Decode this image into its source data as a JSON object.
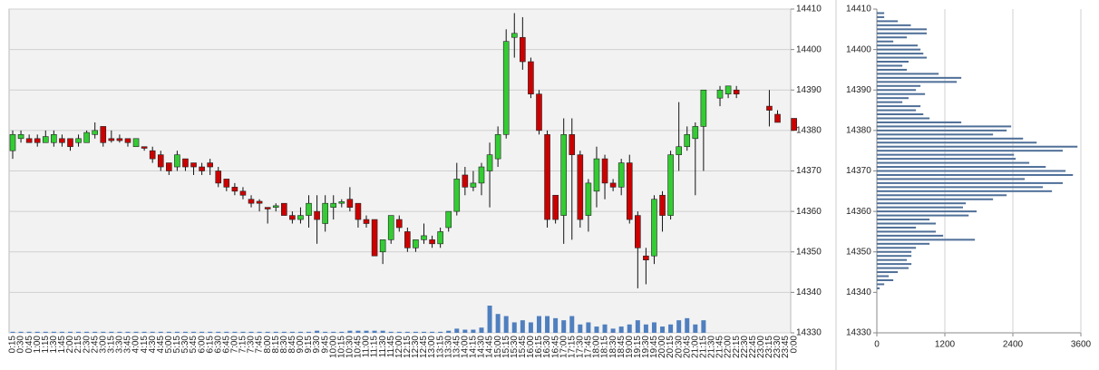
{
  "chart_data": [
    {
      "type": "candlestick",
      "categories": [
        "0:15",
        "0:30",
        "0:45",
        "1:00",
        "1:15",
        "1:30",
        "1:45",
        "2:00",
        "2:15",
        "2:30",
        "2:45",
        "3:00",
        "3:15",
        "3:30",
        "3:45",
        "4:00",
        "4:15",
        "4:30",
        "4:45",
        "5:00",
        "5:15",
        "5:30",
        "5:45",
        "6:00",
        "6:15",
        "6:30",
        "6:45",
        "7:00",
        "7:15",
        "7:30",
        "7:45",
        "8:00",
        "8:15",
        "8:30",
        "8:45",
        "9:00",
        "9:15",
        "9:30",
        "9:45",
        "10:00",
        "10:15",
        "10:30",
        "10:45",
        "11:00",
        "11:15",
        "11:30",
        "11:45",
        "12:00",
        "12:15",
        "12:30",
        "12:45",
        "13:00",
        "13:15",
        "13:30",
        "13:45",
        "14:00",
        "14:15",
        "14:30",
        "14:45",
        "15:00",
        "15:15",
        "15:30",
        "15:45",
        "16:00",
        "16:15",
        "16:30",
        "16:45",
        "17:00",
        "17:15",
        "17:30",
        "17:45",
        "18:00",
        "18:15",
        "18:30",
        "18:45",
        "19:00",
        "19:15",
        "19:30",
        "19:45",
        "20:00",
        "20:15",
        "20:30",
        "20:45",
        "21:00",
        "21:15",
        "21:30",
        "21:45",
        "22:00",
        "22:15",
        "22:30",
        "22:45",
        "23:00",
        "23:15",
        "23:30",
        "23:45",
        "0:00"
      ],
      "open": [
        14375,
        14378,
        14378,
        14378,
        14377,
        14377,
        14378,
        14378,
        14377,
        14377,
        14379,
        14381,
        14378,
        14378,
        14378,
        14376,
        14376,
        14375,
        14374,
        14372,
        14371,
        14373,
        14372,
        14371,
        14372,
        14370,
        14368,
        14366,
        14365,
        14363,
        14362.5,
        14361,
        14361,
        14362,
        14359,
        14358,
        14359,
        14360,
        14357,
        14361,
        14362,
        14363,
        14362,
        14358,
        14358,
        14350,
        14353,
        14358,
        14355,
        14351,
        14353,
        14353,
        14352,
        14356,
        14360,
        14369,
        14366,
        14367,
        14370,
        14373,
        14379,
        14403,
        14403,
        14397,
        14389,
        14379,
        14364,
        14359,
        14379,
        14374,
        14359,
        14365,
        14373,
        14367,
        14366,
        14372,
        14359,
        14349,
        14349,
        14364,
        14359,
        14374,
        14376,
        14378,
        14381,
        null,
        14388,
        14389,
        14390,
        null,
        null,
        null,
        14386,
        14384,
        null,
        14383
      ],
      "close": [
        14379,
        14379,
        14377,
        14377,
        14378.5,
        14379,
        14377,
        14376,
        14378,
        14379.5,
        14380,
        14377,
        14377.5,
        14377.5,
        14377,
        14378,
        14375.6,
        14373,
        14371,
        14370,
        14374,
        14371,
        14371,
        14370,
        14371,
        14367,
        14366,
        14365,
        14364,
        14362,
        14362,
        14360.6,
        14361.4,
        14359,
        14358,
        14359,
        14362,
        14358,
        14362,
        14362,
        14362.4,
        14361,
        14358,
        14357,
        14349,
        14353,
        14359,
        14356,
        14351,
        14353,
        14354,
        14352,
        14355,
        14360,
        14368,
        14366,
        14367,
        14371,
        14374,
        14379,
        14402,
        14404,
        14397,
        14389,
        14380,
        14358,
        14358,
        14379,
        14374,
        14358,
        14367,
        14373,
        14367,
        14366,
        14372,
        14358,
        14351,
        14348,
        14363,
        14359,
        14374,
        14376,
        14379,
        14381,
        14390,
        null,
        14390,
        14391,
        14389,
        null,
        null,
        null,
        14385,
        14382,
        null,
        14380
      ],
      "high": [
        14380,
        14380,
        14379,
        14379,
        14380,
        14380,
        14379,
        14378,
        14379,
        14380,
        14382,
        14381,
        14380,
        14379,
        14378,
        14378,
        14376,
        14376,
        14375,
        14372,
        14375,
        14373,
        14372,
        14372,
        14373,
        14371,
        14368,
        14367,
        14366,
        14364,
        14363,
        14361,
        14362,
        14362,
        14360,
        14361,
        14364,
        14364,
        14364,
        14364,
        14363,
        14366,
        14362,
        14359,
        14358,
        14353,
        14359,
        14359,
        14356,
        14353,
        14357,
        14354,
        14356,
        14360,
        14372,
        14371,
        14370,
        14372,
        14377,
        14381,
        14405,
        14409,
        14408,
        14398,
        14390,
        14380,
        14364,
        14383,
        14383,
        14375,
        14368,
        14376,
        14374,
        14368,
        14373,
        14374,
        14360,
        14351,
        14364,
        14365,
        14375,
        14387,
        14381,
        14382,
        14390,
        null,
        14391,
        14391,
        14391,
        null,
        null,
        null,
        14390,
        14385,
        null,
        14383
      ],
      "low": [
        14373,
        14377,
        14377,
        14376,
        14377,
        14376,
        14376,
        14375,
        14376,
        14377,
        14378,
        14376,
        14377,
        14377,
        14376,
        14376,
        14375,
        14372,
        14370,
        14369,
        14370,
        14370,
        14369,
        14369,
        14369,
        14366,
        14365,
        14364,
        14363,
        14361,
        14360,
        14357,
        14360,
        14359,
        14357,
        14357,
        14356,
        14352,
        14355,
        14358,
        14361,
        14360,
        14356,
        14356,
        14349,
        14347,
        14352,
        14355,
        14350,
        14350,
        14352,
        14351,
        14351,
        14355,
        14359,
        14364,
        14365,
        14364,
        14361,
        14371,
        14378,
        14398,
        14395,
        14388,
        14379,
        14356,
        14357,
        14352,
        14353,
        14356,
        14355,
        14361,
        14363,
        14365,
        14364,
        14357,
        14341,
        14342,
        14347,
        14355,
        14358,
        14370,
        14375,
        14364,
        14370,
        null,
        14386,
        14388,
        14388,
        null,
        null,
        null,
        14381,
        14382,
        null,
        14380
      ],
      "volume": [
        1,
        1,
        1,
        1,
        1,
        1,
        1,
        1,
        1,
        1,
        1,
        1,
        1,
        1,
        1,
        1,
        1,
        1,
        1,
        1,
        1,
        1,
        1,
        1,
        1,
        1,
        1,
        1,
        1,
        1,
        1,
        1,
        1,
        1,
        1,
        1,
        1,
        2,
        1,
        1,
        1,
        2,
        2,
        2,
        2,
        2,
        1,
        1,
        1,
        1,
        1,
        1,
        1,
        2,
        4,
        3,
        3,
        5,
        26,
        18,
        16,
        10,
        12,
        10,
        16,
        16,
        14,
        12,
        16,
        8,
        10,
        6,
        8,
        4,
        6,
        8,
        12,
        8,
        10,
        6,
        8,
        12,
        14,
        8,
        12,
        null,
        null,
        null,
        null,
        null,
        null,
        null,
        null,
        null,
        null,
        null
      ],
      "up_color": "#33cc33",
      "down_color": "#cc0000",
      "volume_color": "#4f7fbf",
      "ylim": [
        14330,
        14410
      ],
      "yticks": [
        14330,
        14340,
        14350,
        14360,
        14370,
        14380,
        14390,
        14400,
        14410
      ],
      "grid": true
    },
    {
      "type": "bar",
      "orientation": "horizontal",
      "levels": [
        14409,
        14408,
        14407,
        14406,
        14405,
        14404,
        14403,
        14402,
        14401,
        14400,
        14399,
        14398,
        14397,
        14396,
        14395,
        14394,
        14393,
        14392,
        14391,
        14390,
        14389,
        14388,
        14387,
        14386,
        14385,
        14384,
        14383,
        14382,
        14381,
        14380,
        14379,
        14378,
        14377,
        14376,
        14375,
        14374,
        14373,
        14372,
        14371,
        14370,
        14369,
        14368,
        14367,
        14366,
        14365,
        14364,
        14363,
        14362,
        14361,
        14360,
        14359,
        14358,
        14357,
        14356,
        14355,
        14354,
        14353,
        14352,
        14351,
        14350,
        14349,
        14348,
        14347,
        14346,
        14345,
        14344,
        14343,
        14342,
        14341
      ],
      "values": [
        130,
        130,
        370,
        600,
        880,
        880,
        530,
        290,
        720,
        770,
        820,
        880,
        560,
        450,
        530,
        1090,
        1490,
        1410,
        770,
        690,
        850,
        560,
        450,
        770,
        690,
        820,
        930,
        1490,
        2370,
        2290,
        2050,
        2580,
        2820,
        3540,
        3280,
        2420,
        2450,
        2690,
        2980,
        3330,
        3460,
        2610,
        3280,
        2930,
        3090,
        2290,
        2050,
        1570,
        1520,
        1760,
        1620,
        930,
        1040,
        690,
        1040,
        1170,
        1730,
        930,
        690,
        610,
        610,
        530,
        610,
        560,
        370,
        210,
        290,
        130,
        50
      ],
      "color": "#4f6f98",
      "xlim": [
        0,
        3600
      ],
      "xticks": [
        0,
        1200,
        2400,
        3600
      ],
      "ylim": [
        14330,
        14410
      ],
      "yticks": [
        14330,
        14340,
        14350,
        14360,
        14370,
        14380,
        14390,
        14400,
        14410
      ],
      "grid": true
    }
  ]
}
